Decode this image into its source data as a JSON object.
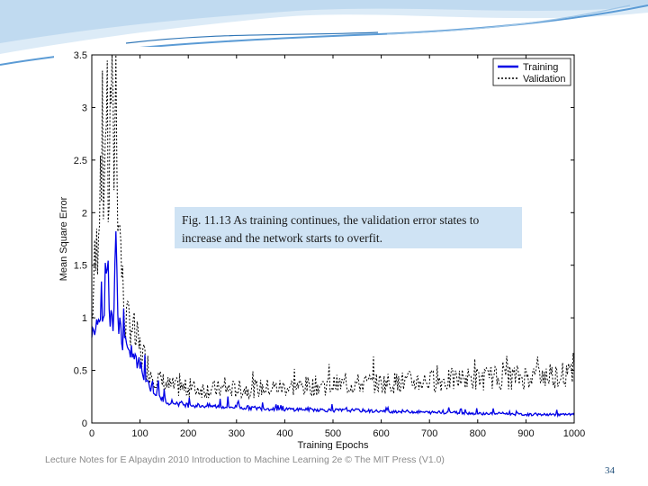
{
  "slide": {
    "caption": "Fig. 11.13 As training continues, the validation error states to increase and the network starts to overfit.",
    "footer": "Lecture Notes for E Alpaydın 2010 Introduction to Machine Learning 2e © The MIT Press (V1.0)",
    "page_number": "34"
  },
  "colors": {
    "header_light": "#dcebf7",
    "header_mid": "#9fc6e7",
    "header_dark": "#2e75b6",
    "training": "#0000e6",
    "validation": "#000000",
    "caption_bg": "#cfe3f4"
  },
  "chart_data": {
    "type": "line",
    "xlabel": "Training Epochs",
    "ylabel": "Mean Square Error",
    "xlim": [
      0,
      1000
    ],
    "ylim": [
      0,
      3.5
    ],
    "xticks": [
      0,
      100,
      200,
      300,
      400,
      500,
      600,
      700,
      800,
      900,
      1000
    ],
    "yticks": [
      0,
      0.5,
      1,
      1.5,
      2,
      2.5,
      3,
      3.5
    ],
    "xtick_labels": [
      "0",
      "100",
      "200",
      "300",
      "400",
      "500",
      "600",
      "700",
      "800",
      "900",
      "1000"
    ],
    "ytick_labels": [
      "0",
      "0.5",
      "1",
      "1.5",
      "2",
      "2.5",
      "3",
      "3.5"
    ],
    "legend_position": "top-right",
    "grid": false,
    "series": [
      {
        "name": "Training",
        "style": "solid",
        "x": [
          0,
          5,
          10,
          15,
          20,
          25,
          30,
          35,
          40,
          45,
          50,
          55,
          60,
          65,
          70,
          75,
          80,
          90,
          100,
          110,
          120,
          130,
          140,
          150,
          160,
          175,
          190,
          200,
          250,
          300,
          350,
          400,
          450,
          500,
          550,
          600,
          650,
          700,
          750,
          800,
          850,
          900,
          950,
          1000
        ],
        "values": [
          0.8,
          0.9,
          1.1,
          0.9,
          1.2,
          1.0,
          1.6,
          1.0,
          1.1,
          0.9,
          1.68,
          1.0,
          0.9,
          0.7,
          0.8,
          0.6,
          0.7,
          0.6,
          0.55,
          0.45,
          0.35,
          0.3,
          0.25,
          0.22,
          0.2,
          0.19,
          0.18,
          0.17,
          0.16,
          0.15,
          0.14,
          0.13,
          0.13,
          0.12,
          0.12,
          0.11,
          0.11,
          0.1,
          0.1,
          0.09,
          0.09,
          0.08,
          0.08,
          0.08
        ]
      },
      {
        "name": "Validation",
        "style": "dotted",
        "x": [
          0,
          5,
          10,
          15,
          20,
          25,
          30,
          35,
          40,
          45,
          50,
          55,
          60,
          65,
          70,
          75,
          80,
          90,
          100,
          110,
          120,
          130,
          140,
          150,
          160,
          175,
          190,
          200,
          250,
          300,
          350,
          400,
          450,
          500,
          550,
          600,
          650,
          700,
          750,
          800,
          850,
          900,
          950,
          1000
        ],
        "values": [
          1.0,
          1.4,
          1.6,
          2.2,
          2.8,
          1.8,
          3.2,
          2.0,
          3.3,
          2.4,
          3.35,
          2.1,
          1.5,
          1.2,
          1.0,
          0.9,
          1.0,
          0.8,
          0.7,
          0.6,
          0.5,
          0.45,
          0.4,
          0.38,
          0.35,
          0.34,
          0.33,
          0.33,
          0.32,
          0.32,
          0.33,
          0.34,
          0.35,
          0.36,
          0.37,
          0.38,
          0.39,
          0.4,
          0.41,
          0.42,
          0.43,
          0.44,
          0.45,
          0.46
        ]
      }
    ]
  }
}
